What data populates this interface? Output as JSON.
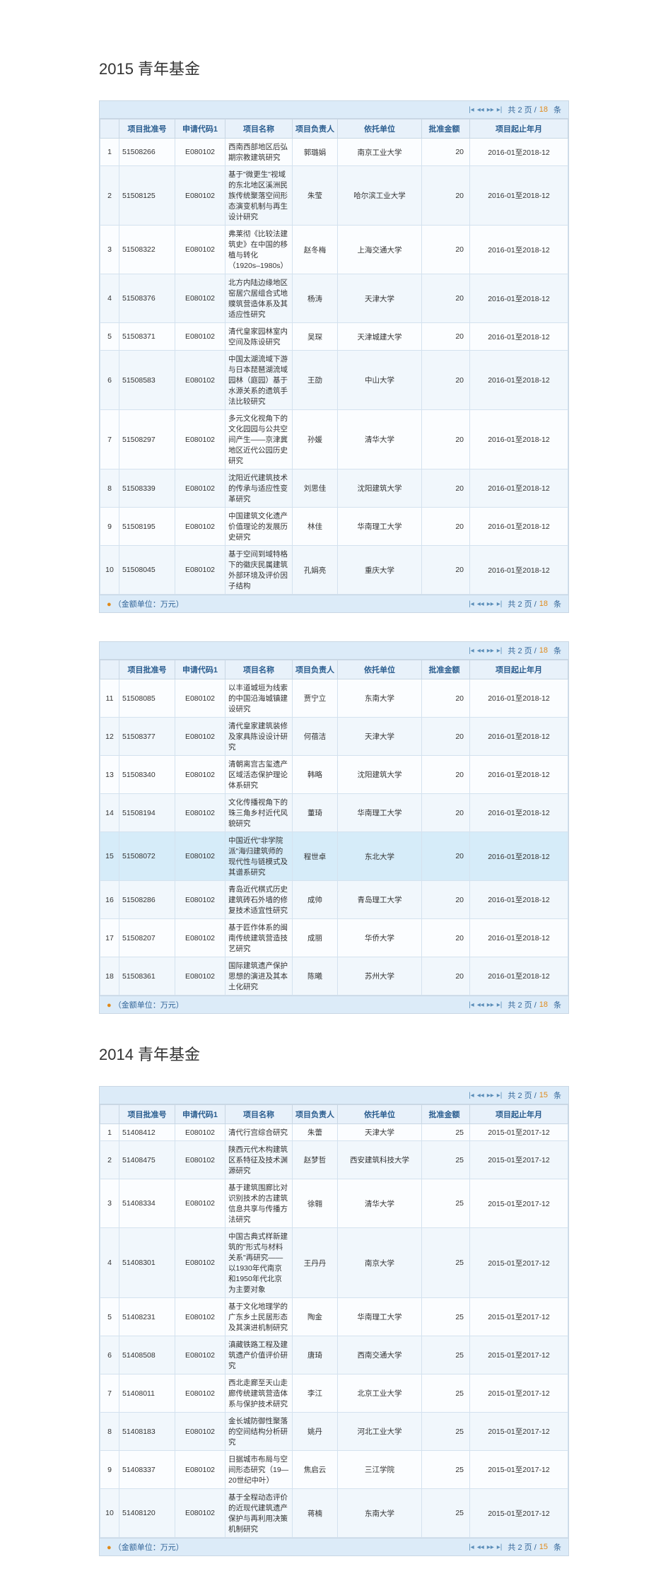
{
  "strings": {
    "title2015": "2015 青年基金",
    "title2014": "2014 青年基金",
    "footerUnit": "（金额单位：万元）",
    "pagerPrefix": "共 2 页 /",
    "pagerSuffix": "条",
    "cols": {
      "idx": "",
      "id": "项目批准号",
      "code": "申请代码1",
      "name": "项目名称",
      "pi": "项目负责人",
      "unit": "依托单位",
      "amt": "批准金额",
      "date": "项目起止年月"
    }
  },
  "colors": {
    "headerBg": "#e8f1fa",
    "border": "#c9d7e4",
    "accentText": "#336699",
    "totalOrange": "#e08a1a"
  },
  "tables": [
    {
      "total": "18",
      "startIndex": 1,
      "rows": [
        {
          "id": "51508266",
          "code": "E080102",
          "name": "西南西部地区后弘期宗教建筑研究",
          "pi": "郭璐娟",
          "unit": "南京工业大学",
          "amt": "20",
          "date": "2016-01至2018-12"
        },
        {
          "id": "51508125",
          "code": "E080102",
          "name": "基于\"微更生\"视域的东北地区溪洲民族传统聚落空间形态演变机制与再生设计研究",
          "pi": "朱莹",
          "unit": "哈尔滨工业大学",
          "amt": "20",
          "date": "2016-01至2018-12"
        },
        {
          "id": "51508322",
          "code": "E080102",
          "name": "弗莱彻《比较法建筑史》在中国的移植与转化（1920s–1980s）",
          "pi": "赵冬梅",
          "unit": "上海交通大学",
          "amt": "20",
          "date": "2016-01至2018-12"
        },
        {
          "id": "51508376",
          "code": "E080102",
          "name": "北方内陆边缘地区窑居穴居组合式地贌筑营造体系及其适应性研究",
          "pi": "杨涛",
          "unit": "天津大学",
          "amt": "20",
          "date": "2016-01至2018-12"
        },
        {
          "id": "51508371",
          "code": "E080102",
          "name": "清代皇家园林室内空间及陈设研究",
          "pi": "吴琛",
          "unit": "天津城建大学",
          "amt": "20",
          "date": "2016-01至2018-12"
        },
        {
          "id": "51508583",
          "code": "E080102",
          "name": "中国太湖流域下游与日本琵琶湖流域园林（庭园）基于水源关系的遗筑手法比较研究",
          "pi": "王劭",
          "unit": "中山大学",
          "amt": "20",
          "date": "2016-01至2018-12"
        },
        {
          "id": "51508297",
          "code": "E080102",
          "name": "多元文化视角下的文化园园与公共空间产生——京津冀地区近代公园历史研究",
          "pi": "孙媛",
          "unit": "清华大学",
          "amt": "20",
          "date": "2016-01至2018-12"
        },
        {
          "id": "51508339",
          "code": "E080102",
          "name": "沈阳近代建筑技术的传承与适应性变革研究",
          "pi": "刘思佳",
          "unit": "沈阳建筑大学",
          "amt": "20",
          "date": "2016-01至2018-12"
        },
        {
          "id": "51508195",
          "code": "E080102",
          "name": "中国建筑文化遗产价值理论的发展历史研究",
          "pi": "林佳",
          "unit": "华南理工大学",
          "amt": "20",
          "date": "2016-01至2018-12"
        },
        {
          "id": "51508045",
          "code": "E080102",
          "name": "基于空间到域特格下的徽庆民属建筑外部环境及评价因子结构",
          "pi": "孔娟亮",
          "unit": "重庆大学",
          "amt": "20",
          "date": "2016-01至2018-12"
        }
      ]
    },
    {
      "total": "18",
      "startIndex": 11,
      "highlightRow": 5,
      "rows": [
        {
          "id": "51508085",
          "code": "E080102",
          "name": "以丰道城垣为线索的中国沿海城镇建设研究",
          "pi": "贾宁立",
          "unit": "东南大学",
          "amt": "20",
          "date": "2016-01至2018-12"
        },
        {
          "id": "51508377",
          "code": "E080102",
          "name": "清代皇家建筑装修及家具陈设设计研究",
          "pi": "何蓓洁",
          "unit": "天津大学",
          "amt": "20",
          "date": "2016-01至2018-12"
        },
        {
          "id": "51508340",
          "code": "E080102",
          "name": "清朝离宫古玺遗产区域活态保护理论体系研究",
          "pi": "韩略",
          "unit": "沈阳建筑大学",
          "amt": "20",
          "date": "2016-01至2018-12"
        },
        {
          "id": "51508194",
          "code": "E080102",
          "name": "文化传播视角下的珠三角乡村近代风貌研究",
          "pi": "董琦",
          "unit": "华南理工大学",
          "amt": "20",
          "date": "2016-01至2018-12"
        },
        {
          "id": "51508072",
          "code": "E080102",
          "name": "中国近代\"非学院派\"海归建筑师的现代性与链模式及其谱系研究",
          "pi": "程世卓",
          "unit": "东北大学",
          "amt": "20",
          "date": "2016-01至2018-12"
        },
        {
          "id": "51508286",
          "code": "E080102",
          "name": "青岛近代棋式历史建筑砖石外墙的修复技术适宜性研究",
          "pi": "成帅",
          "unit": "青岛理工大学",
          "amt": "20",
          "date": "2016-01至2018-12"
        },
        {
          "id": "51508207",
          "code": "E080102",
          "name": "基于匠作体系的闽南传统建筑营造技艺研究",
          "pi": "成丽",
          "unit": "华侨大学",
          "amt": "20",
          "date": "2016-01至2018-12"
        },
        {
          "id": "51508361",
          "code": "E080102",
          "name": "国际建筑遗产保护思想的演进及其本土化研究",
          "pi": "陈曦",
          "unit": "苏州大学",
          "amt": "20",
          "date": "2016-01至2018-12"
        }
      ]
    },
    {
      "total": "15",
      "startIndex": 1,
      "rows": [
        {
          "id": "51408412",
          "code": "E080102",
          "name": "清代行宫综合研究",
          "pi": "朱蕾",
          "unit": "天津大学",
          "amt": "25",
          "date": "2015-01至2017-12"
        },
        {
          "id": "51408475",
          "code": "E080102",
          "name": "陕西元代木构建筑区系特征及技术渊源研究",
          "pi": "赵梦哲",
          "unit": "西安建筑科技大学",
          "amt": "25",
          "date": "2015-01至2017-12"
        },
        {
          "id": "51408334",
          "code": "E080102",
          "name": "基于建筑围廊比对识别技术的古建筑信息共享与传播方法研究",
          "pi": "徐翱",
          "unit": "清华大学",
          "amt": "25",
          "date": "2015-01至2017-12"
        },
        {
          "id": "51408301",
          "code": "E080102",
          "name": "中国古典式样新建筑的\"形式与材料关系\"再研究——以1930年代南京和1950年代北京为主要对象",
          "pi": "王丹丹",
          "unit": "南京大学",
          "amt": "25",
          "date": "2015-01至2017-12"
        },
        {
          "id": "51408231",
          "code": "E080102",
          "name": "基于文化地理学的广东乡土民居形态及其演进机制研究",
          "pi": "陶金",
          "unit": "华南理工大学",
          "amt": "25",
          "date": "2015-01至2017-12"
        },
        {
          "id": "51408508",
          "code": "E080102",
          "name": "滇藏铁路工程及建筑遗产价值评价研究",
          "pi": "唐琦",
          "unit": "西南交通大学",
          "amt": "25",
          "date": "2015-01至2017-12"
        },
        {
          "id": "51408011",
          "code": "E080102",
          "name": "西北走廊至天山走廊传统建筑营造体系与保护技术研究",
          "pi": "李江",
          "unit": "北京工业大学",
          "amt": "25",
          "date": "2015-01至2017-12"
        },
        {
          "id": "51408183",
          "code": "E080102",
          "name": "金长城防御性聚落的空间结构分析研究",
          "pi": "姚丹",
          "unit": "河北工业大学",
          "amt": "25",
          "date": "2015-01至2017-12"
        },
        {
          "id": "51408337",
          "code": "E080102",
          "name": "日据城市布局与空间形态研究（19—20世纪中叶）",
          "pi": "焦启云",
          "unit": "三江学院",
          "amt": "25",
          "date": "2015-01至2017-12"
        },
        {
          "id": "51408120",
          "code": "E080102",
          "name": "基于全程动态评价的近现代建筑遗产保护与再利用决策机制研究",
          "pi": "蒋楠",
          "unit": "东南大学",
          "amt": "25",
          "date": "2015-01至2017-12"
        }
      ]
    }
  ]
}
